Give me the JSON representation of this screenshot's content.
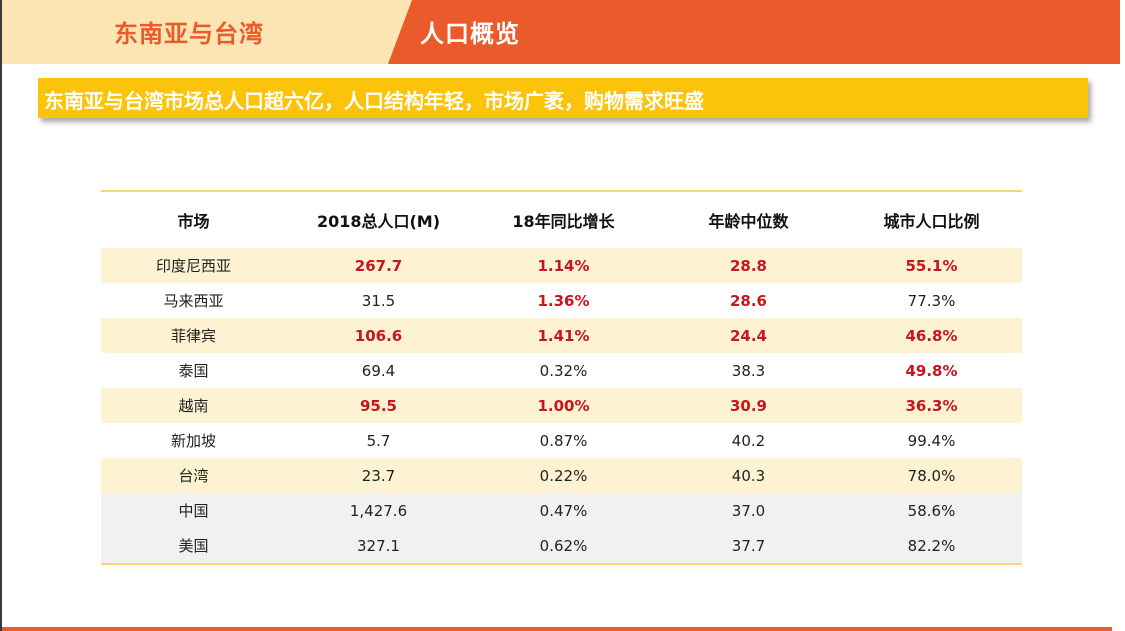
{
  "header": {
    "region_label": "东南亚与台湾",
    "section_title": "人口概览"
  },
  "subtitle": "东南亚与台湾市场总人口超六亿，人口结构年轻，市场广袤，购物需求旺盛",
  "table": {
    "columns": [
      "市场",
      "2018总人口(M)",
      "18年同比增长",
      "年龄中位数",
      "城市人口比例"
    ],
    "rows": [
      {
        "market": "印度尼西亚",
        "population": "267.7",
        "growth": "1.14%",
        "median_age": "28.8",
        "urban": "55.1%",
        "shade": "yellow",
        "highlight": [
          false,
          true,
          true,
          true,
          true
        ]
      },
      {
        "market": "马来西亚",
        "population": "31.5",
        "growth": "1.36%",
        "median_age": "28.6",
        "urban": "77.3%",
        "shade": "white",
        "highlight": [
          false,
          false,
          true,
          true,
          false
        ]
      },
      {
        "market": "菲律宾",
        "population": "106.6",
        "growth": "1.41%",
        "median_age": "24.4",
        "urban": "46.8%",
        "shade": "yellow",
        "highlight": [
          false,
          true,
          true,
          true,
          true
        ]
      },
      {
        "market": "泰国",
        "population": "69.4",
        "growth": "0.32%",
        "median_age": "38.3",
        "urban": "49.8%",
        "shade": "white",
        "highlight": [
          false,
          false,
          false,
          false,
          true
        ]
      },
      {
        "market": "越南",
        "population": "95.5",
        "growth": "1.00%",
        "median_age": "30.9",
        "urban": "36.3%",
        "shade": "yellow",
        "highlight": [
          false,
          true,
          true,
          true,
          true
        ]
      },
      {
        "market": "新加坡",
        "population": "5.7",
        "growth": "0.87%",
        "median_age": "40.2",
        "urban": "99.4%",
        "shade": "white",
        "highlight": [
          false,
          false,
          false,
          false,
          false
        ]
      },
      {
        "market": "台湾",
        "population": "23.7",
        "growth": "0.22%",
        "median_age": "40.3",
        "urban": "78.0%",
        "shade": "yellow",
        "highlight": [
          false,
          false,
          false,
          false,
          false
        ]
      },
      {
        "market": "中国",
        "population": "1,427.6",
        "growth": "0.47%",
        "median_age": "37.0",
        "urban": "58.6%",
        "shade": "gray",
        "highlight": [
          false,
          false,
          false,
          false,
          false
        ]
      },
      {
        "market": "美国",
        "population": "327.1",
        "growth": "0.62%",
        "median_age": "37.7",
        "urban": "82.2%",
        "shade": "gray",
        "highlight": [
          false,
          false,
          false,
          false,
          false
        ]
      }
    ]
  },
  "colors": {
    "header_orange": "#ea5a2b",
    "header_cream": "#fbe6b3",
    "subtitle_yellow": "#fbc30a",
    "highlight_red": "#c8161d",
    "row_yellow": "#fdf2d2",
    "row_gray": "#f1f1f1"
  }
}
